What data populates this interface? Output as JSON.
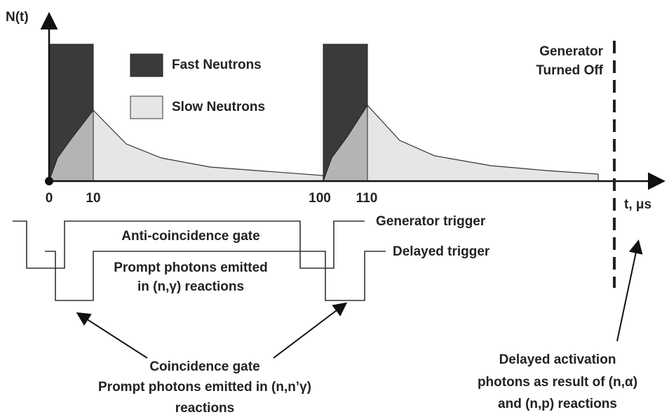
{
  "axis": {
    "y_label": "N(t)",
    "x_label": "t, μs",
    "ticks": [
      "0",
      "10",
      "100",
      "110"
    ]
  },
  "legend": {
    "fast": "Fast Neutrons",
    "slow": "Slow Neutrons"
  },
  "generator_off": [
    "Generator",
    "Turned Off"
  ],
  "gates": {
    "generator_trigger": "Generator trigger",
    "anti_coincidence": "Anti-coincidence gate",
    "delayed_trigger": "Delayed trigger",
    "prompt_ng": [
      "Prompt photons emitted",
      "in (n,γ) reactions"
    ]
  },
  "coincidence": [
    "Coincidence gate",
    "Prompt photons emitted in (n,n’γ)",
    "reactions"
  ],
  "activation": [
    "Delayed activation",
    "photons as result of (n,α)",
    "and (n,p) reactions"
  ]
}
